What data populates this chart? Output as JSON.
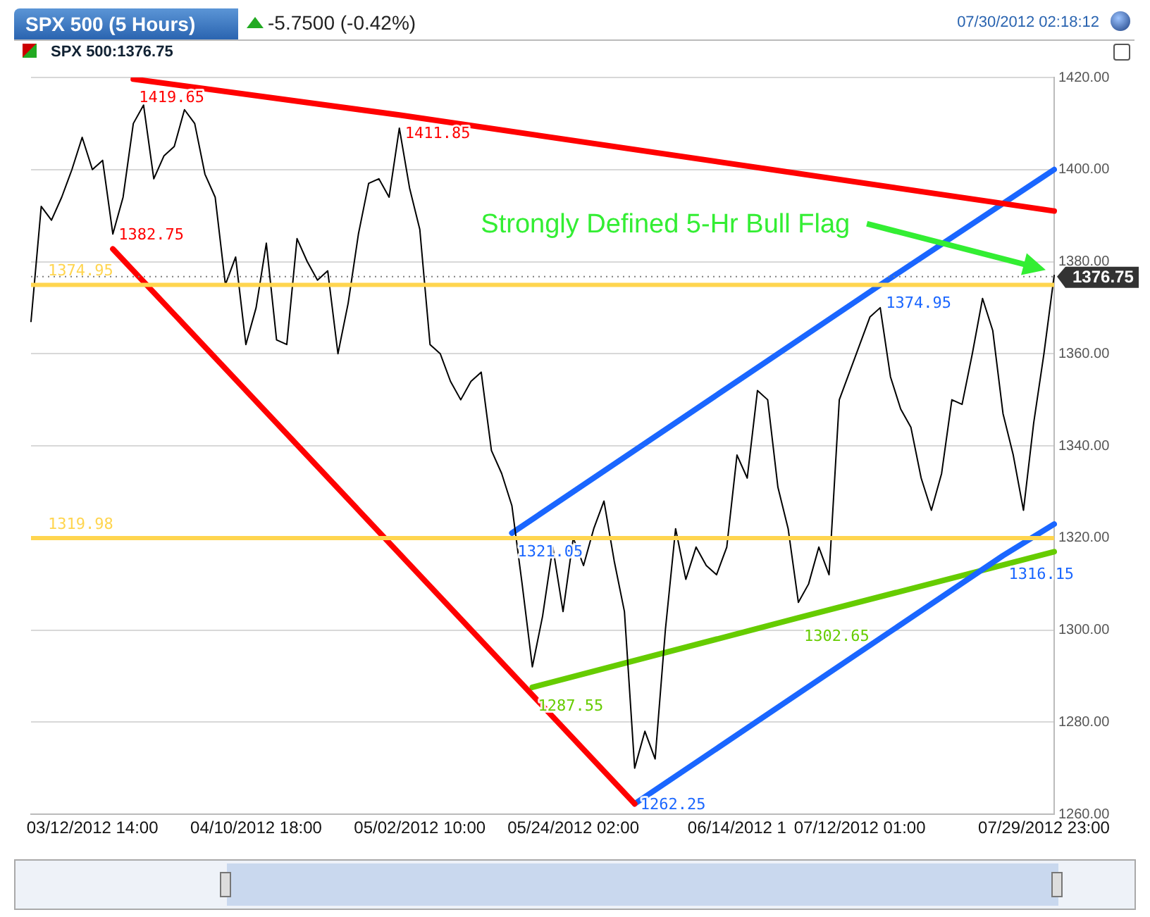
{
  "chart_data": {
    "type": "line",
    "title": "SPX 500 (5 Hours)",
    "subtitle": "SPX 500:1376.75",
    "annotations": [
      "-5.7500 (-0.42%)",
      "07/30/2012 02:18:12",
      "Strongly Defined 5-Hr Bull Flag"
    ],
    "categories": [
      null,
      null,
      null,
      null,
      null,
      null,
      "03/12/2012 14:00",
      null,
      null,
      null,
      null,
      null,
      null,
      null,
      null,
      null,
      null,
      null,
      null,
      null,
      null,
      null,
      "04/10/2012 18:00",
      null,
      null,
      null,
      null,
      null,
      null,
      null,
      null,
      null,
      null,
      null,
      null,
      null,
      null,
      null,
      "05/02/2012 10:00",
      null,
      null,
      null,
      null,
      null,
      null,
      null,
      null,
      null,
      null,
      null,
      null,
      null,
      null,
      "05/24/2012 02:00",
      null,
      null,
      null,
      null,
      null,
      null,
      null,
      null,
      null,
      null,
      null,
      null,
      null,
      null,
      null,
      "06/14/2012 1",
      null,
      null,
      null,
      null,
      null,
      null,
      null,
      null,
      null,
      null,
      null,
      "07/12/2012 01:00",
      null,
      null,
      null,
      null,
      null,
      null,
      null,
      null,
      null,
      null,
      null,
      null,
      null,
      null,
      null,
      null,
      null,
      "07/29/2012 23:00",
      null
    ],
    "series": [
      {
        "color": "#000000",
        "values": [
          1367,
          1392,
          1389,
          1394,
          1400,
          1407,
          1400,
          1402,
          1386,
          1394,
          1410,
          1414,
          1398,
          1403,
          1405,
          1413,
          1410,
          1399,
          1394,
          1375,
          1381,
          1362,
          1370,
          1384,
          1363,
          1362,
          1385,
          1380,
          1376,
          1378,
          1360,
          1371,
          1386,
          1397,
          1398,
          1394,
          1409,
          1396,
          1387,
          1362,
          1360,
          1354,
          1350,
          1354,
          1356,
          1339,
          1334,
          1327,
          1310,
          1292,
          1303,
          1318,
          1304,
          1320,
          1314,
          1322,
          1328,
          1315,
          1304,
          1270,
          1278,
          1272,
          1300,
          1322,
          1311,
          1318,
          1314,
          1312,
          1318,
          1338,
          1333,
          1352,
          1350,
          1331,
          1322,
          1306,
          1310,
          1318,
          1312,
          1350,
          1356,
          1362,
          1368,
          1370,
          1355,
          1348,
          1344,
          1333,
          1326,
          1334,
          1350,
          1349,
          1360,
          1372,
          1365,
          1347,
          1338,
          1326,
          1345,
          1360,
          1377
        ]
      },
      {
        "color": "#ff0000",
        "values": [
          null,
          null,
          null,
          null,
          null,
          null,
          null,
          null,
          null,
          null,
          1419.65,
          null,
          null,
          null,
          null,
          null,
          null,
          null,
          null,
          null,
          null,
          null,
          null,
          null,
          null,
          null,
          null,
          null,
          null,
          null,
          null,
          null,
          null,
          null,
          null,
          null,
          1411.85,
          null,
          null,
          null,
          null,
          null,
          null,
          null,
          null,
          null,
          null,
          null,
          null,
          null,
          null,
          null,
          null,
          null,
          null,
          null,
          null,
          null,
          null,
          null,
          null,
          null,
          null,
          null,
          null,
          null,
          null,
          null,
          null,
          null,
          null,
          null,
          null,
          null,
          null,
          null,
          null,
          null,
          null,
          null,
          null,
          null,
          null,
          null,
          null,
          null,
          null,
          null,
          null,
          null,
          null,
          null,
          null,
          null,
          null,
          null,
          null,
          null,
          null,
          null,
          1391
        ],
        "value_labels": [
          null,
          null,
          null,
          null,
          null,
          null,
          null,
          null,
          null,
          null,
          "1419.65",
          null,
          null,
          null,
          null,
          null,
          null,
          null,
          null,
          null,
          null,
          null,
          null,
          null,
          null,
          null,
          null,
          null,
          null,
          null,
          null,
          null,
          null,
          null,
          null,
          null,
          "1411.85",
          null,
          null,
          null,
          null,
          null,
          null,
          null,
          null,
          null,
          null,
          null,
          null,
          null,
          null,
          null,
          null,
          null,
          null,
          null,
          null,
          null,
          null,
          null,
          null,
          null,
          null,
          null,
          null,
          null,
          null,
          null,
          null,
          null,
          null,
          null,
          null,
          null,
          null,
          null,
          null,
          null,
          null,
          null,
          null,
          null,
          null,
          null,
          null,
          null,
          null,
          null,
          null,
          null,
          null,
          null,
          null,
          null,
          null,
          null,
          null,
          null,
          null,
          null,
          null
        ]
      },
      {
        "color": "#ff0000",
        "values": [
          null,
          null,
          null,
          null,
          null,
          null,
          null,
          null,
          1382.75,
          null,
          null,
          null,
          null,
          null,
          null,
          null,
          null,
          null,
          null,
          null,
          null,
          null,
          null,
          null,
          null,
          null,
          null,
          null,
          null,
          null,
          null,
          null,
          null,
          null,
          null,
          null,
          null,
          null,
          null,
          null,
          null,
          null,
          null,
          null,
          null,
          null,
          null,
          null,
          null,
          null,
          null,
          null,
          null,
          null,
          null,
          null,
          null,
          null,
          null,
          1262.25,
          null,
          null,
          null,
          null,
          null,
          null,
          null,
          null,
          null,
          null,
          null,
          null,
          null,
          null,
          null,
          null,
          null,
          null,
          null,
          null,
          null,
          null,
          null,
          null,
          null,
          null,
          null,
          null,
          null,
          null,
          null,
          null,
          null,
          null,
          null,
          null,
          null,
          null,
          null,
          null,
          null
        ],
        "value_labels": [
          null,
          null,
          null,
          null,
          null,
          null,
          null,
          null,
          "1382.75",
          null,
          null,
          null,
          null,
          null,
          null,
          null,
          null,
          null,
          null,
          null,
          null,
          null,
          null,
          null,
          null,
          null,
          null,
          null,
          null,
          null,
          null,
          null,
          null,
          null,
          null,
          null,
          null,
          null,
          null,
          null,
          null,
          null,
          null,
          null,
          null,
          null,
          null,
          null,
          null,
          null,
          null,
          null,
          null,
          null,
          null,
          null,
          null,
          null,
          null,
          null,
          null,
          null,
          null,
          null,
          null,
          null,
          null,
          null,
          null,
          null,
          null,
          null,
          null,
          null,
          null,
          null,
          null,
          null,
          null,
          null,
          null,
          null,
          null,
          null,
          null,
          null,
          null,
          null,
          null,
          null,
          null,
          null,
          null,
          null,
          null,
          null,
          null,
          null,
          null,
          null,
          null
        ]
      },
      {
        "color": "#1a66ff",
        "values": [
          null,
          null,
          null,
          null,
          null,
          null,
          null,
          null,
          null,
          null,
          null,
          null,
          null,
          null,
          null,
          null,
          null,
          null,
          null,
          null,
          null,
          null,
          null,
          null,
          null,
          null,
          null,
          null,
          null,
          null,
          null,
          null,
          null,
          null,
          null,
          null,
          null,
          null,
          null,
          null,
          null,
          null,
          null,
          null,
          null,
          null,
          null,
          1321.05,
          null,
          null,
          null,
          null,
          null,
          null,
          null,
          null,
          null,
          null,
          null,
          null,
          null,
          null,
          null,
          null,
          null,
          null,
          null,
          null,
          null,
          null,
          null,
          null,
          null,
          null,
          null,
          null,
          null,
          null,
          null,
          null,
          null,
          null,
          null,
          1374.95,
          null,
          null,
          null,
          null,
          null,
          null,
          null,
          null,
          null,
          null,
          null,
          null,
          null,
          null,
          null,
          null,
          1400
        ],
        "value_labels": [
          null,
          null,
          null,
          null,
          null,
          null,
          null,
          null,
          null,
          null,
          null,
          null,
          null,
          null,
          null,
          null,
          null,
          null,
          null,
          null,
          null,
          null,
          null,
          null,
          null,
          null,
          null,
          null,
          null,
          null,
          null,
          null,
          null,
          null,
          null,
          null,
          null,
          null,
          null,
          null,
          null,
          null,
          null,
          null,
          null,
          null,
          null,
          "1321.05",
          null,
          null,
          null,
          null,
          null,
          null,
          null,
          null,
          null,
          null,
          null,
          null,
          null,
          null,
          null,
          null,
          null,
          null,
          null,
          null,
          null,
          null,
          null,
          null,
          null,
          null,
          null,
          null,
          null,
          null,
          null,
          null,
          null,
          null,
          null,
          "1374.95",
          null,
          null,
          null,
          null,
          null,
          null,
          null,
          null,
          null,
          null,
          null,
          null,
          null,
          null,
          null,
          null,
          null
        ]
      },
      {
        "color": "#1a66ff",
        "values": [
          null,
          null,
          null,
          null,
          null,
          null,
          null,
          null,
          null,
          null,
          null,
          null,
          null,
          null,
          null,
          null,
          null,
          null,
          null,
          null,
          null,
          null,
          null,
          null,
          null,
          null,
          null,
          null,
          null,
          null,
          null,
          null,
          null,
          null,
          null,
          null,
          null,
          null,
          null,
          null,
          null,
          null,
          null,
          null,
          null,
          null,
          null,
          null,
          null,
          null,
          null,
          null,
          null,
          null,
          null,
          null,
          null,
          null,
          null,
          1262.25,
          null,
          null,
          null,
          null,
          null,
          null,
          null,
          null,
          null,
          null,
          null,
          null,
          null,
          null,
          null,
          null,
          null,
          null,
          null,
          null,
          null,
          null,
          null,
          null,
          null,
          null,
          null,
          null,
          null,
          null,
          null,
          null,
          null,
          null,
          null,
          1316.15,
          null,
          null,
          null,
          null,
          1323
        ],
        "value_labels": [
          null,
          null,
          null,
          null,
          null,
          null,
          null,
          null,
          null,
          null,
          null,
          null,
          null,
          null,
          null,
          null,
          null,
          null,
          null,
          null,
          null,
          null,
          null,
          null,
          null,
          null,
          null,
          null,
          null,
          null,
          null,
          null,
          null,
          null,
          null,
          null,
          null,
          null,
          null,
          null,
          null,
          null,
          null,
          null,
          null,
          null,
          null,
          null,
          null,
          null,
          null,
          null,
          null,
          null,
          null,
          null,
          null,
          null,
          null,
          "1262.25",
          null,
          null,
          null,
          null,
          null,
          null,
          null,
          null,
          null,
          null,
          null,
          null,
          null,
          null,
          null,
          null,
          null,
          null,
          null,
          null,
          null,
          null,
          null,
          null,
          null,
          null,
          null,
          null,
          null,
          null,
          null,
          null,
          null,
          null,
          null,
          "1316.15",
          null,
          null,
          null,
          null,
          null
        ]
      },
      {
        "color": "#66cc00",
        "values": [
          null,
          null,
          null,
          null,
          null,
          null,
          null,
          null,
          null,
          null,
          null,
          null,
          null,
          null,
          null,
          null,
          null,
          null,
          null,
          null,
          null,
          null,
          null,
          null,
          null,
          null,
          null,
          null,
          null,
          null,
          null,
          null,
          null,
          null,
          null,
          null,
          null,
          null,
          null,
          null,
          null,
          null,
          null,
          null,
          null,
          null,
          null,
          null,
          null,
          1287.55,
          null,
          null,
          null,
          null,
          null,
          null,
          null,
          null,
          null,
          null,
          null,
          null,
          null,
          null,
          null,
          null,
          null,
          null,
          null,
          null,
          null,
          null,
          null,
          null,
          null,
          1302.65,
          null,
          null,
          null,
          null,
          null,
          null,
          null,
          null,
          null,
          null,
          null,
          null,
          null,
          null,
          null,
          null,
          null,
          null,
          null,
          null,
          null,
          null,
          null,
          null,
          1317
        ],
        "value_labels": [
          null,
          null,
          null,
          null,
          null,
          null,
          null,
          null,
          null,
          null,
          null,
          null,
          null,
          null,
          null,
          null,
          null,
          null,
          null,
          null,
          null,
          null,
          null,
          null,
          null,
          null,
          null,
          null,
          null,
          null,
          null,
          null,
          null,
          null,
          null,
          null,
          null,
          null,
          null,
          null,
          null,
          null,
          null,
          null,
          null,
          null,
          null,
          null,
          null,
          "1287.55",
          null,
          null,
          null,
          null,
          null,
          null,
          null,
          null,
          null,
          null,
          null,
          null,
          null,
          null,
          null,
          null,
          null,
          null,
          null,
          null,
          null,
          null,
          null,
          null,
          null,
          "1302.65",
          null,
          null,
          null,
          null,
          null,
          null,
          null,
          null,
          null,
          null,
          null,
          null,
          null,
          null,
          null,
          null,
          null,
          null,
          null,
          null,
          null,
          null,
          null,
          null,
          null
        ]
      }
    ],
    "ref_lines": [
      {
        "axis": "y",
        "value": 1374.95,
        "label": "1374.95",
        "color": "#ffd54f"
      },
      {
        "axis": "y",
        "value": 1319.98,
        "label": "1319.98",
        "color": "#ffd54f"
      },
      {
        "axis": "y",
        "value": 1376.75,
        "label": "1376.75",
        "color": "#808080",
        "line_style": "dotted"
      }
    ],
    "ylim": [
      1260,
      1420
    ],
    "yticks": [
      {
        "value": 1260,
        "label": "1260.00"
      },
      {
        "value": 1280,
        "label": "1280.00"
      },
      {
        "value": 1300,
        "label": "1300.00"
      },
      {
        "value": 1320,
        "label": "1320.00"
      },
      {
        "value": 1340,
        "label": "1340.00"
      },
      {
        "value": 1360,
        "label": "1360.00"
      },
      {
        "value": 1380,
        "label": "1380.00"
      },
      {
        "value": 1400,
        "label": "1400.00"
      },
      {
        "value": 1420,
        "label": "1420.00"
      }
    ],
    "grid": "y"
  }
}
